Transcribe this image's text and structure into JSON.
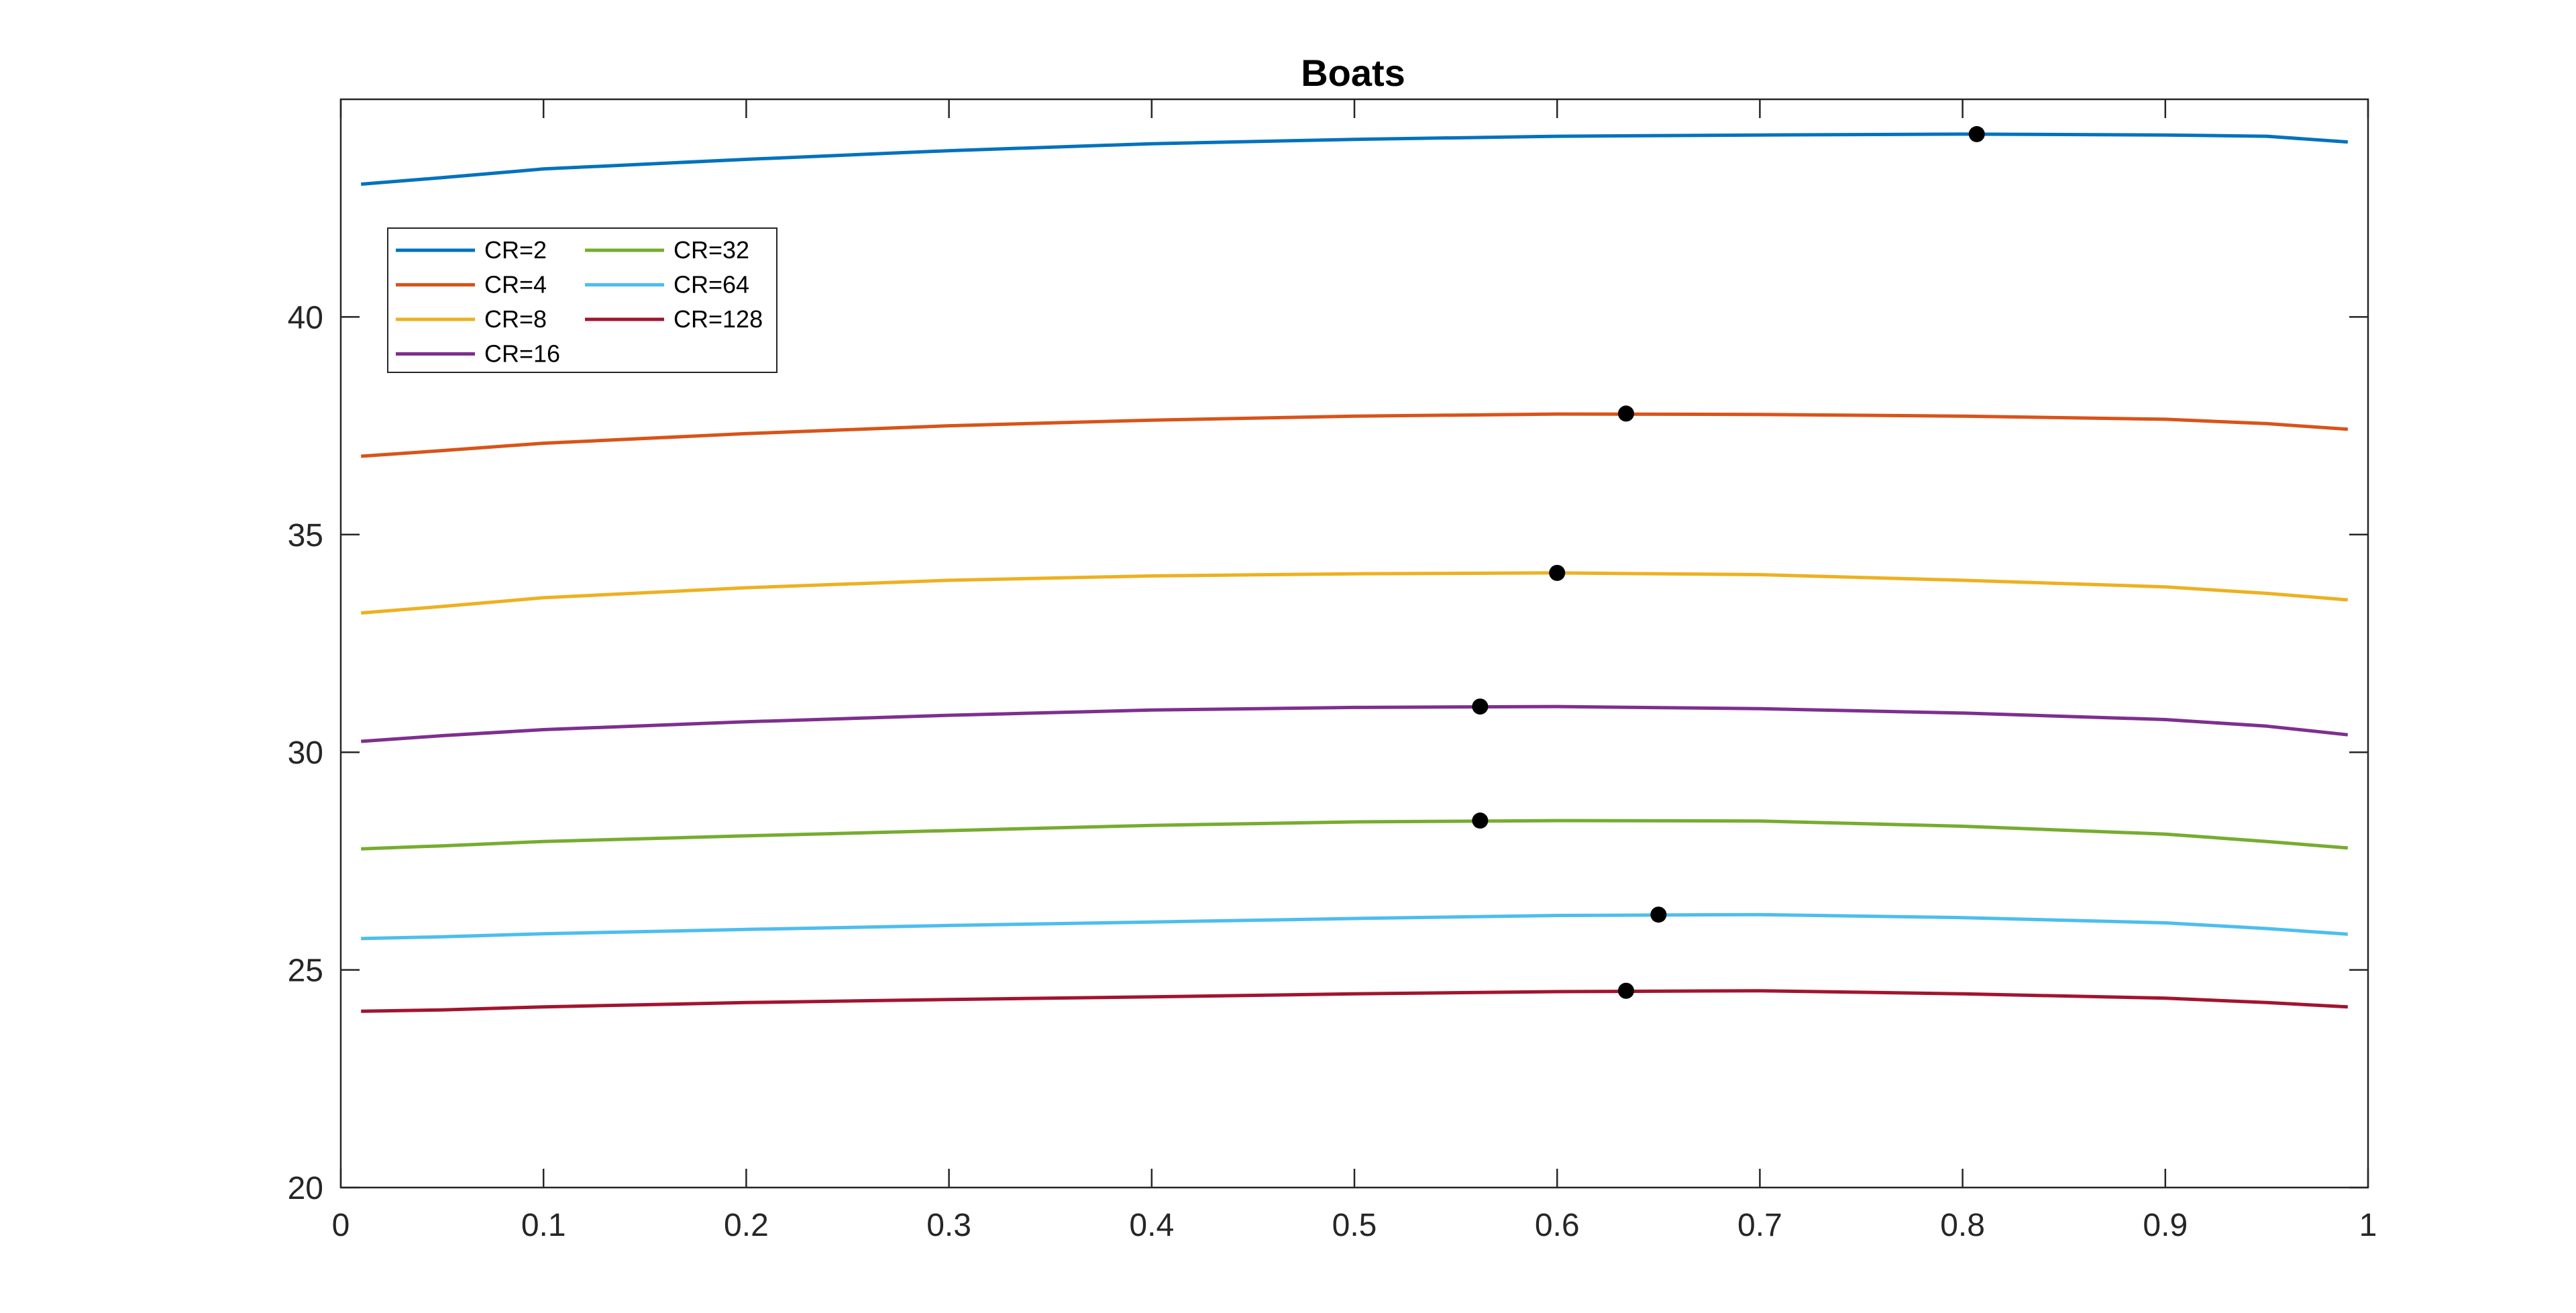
{
  "chart_data": {
    "type": "line",
    "title": "Boats",
    "xlabel": "",
    "ylabel": "",
    "xlim": [
      0,
      1
    ],
    "ylim": [
      20,
      45
    ],
    "xticks": [
      "0",
      "0.1",
      "0.2",
      "0.3",
      "0.4",
      "0.5",
      "0.6",
      "0.7",
      "0.8",
      "0.9",
      "1"
    ],
    "yticks": [
      "20",
      "25",
      "30",
      "35",
      "40"
    ],
    "grid": false,
    "legend_position": "top-left",
    "legend_columns": 2,
    "x": [
      0.01,
      0.05,
      0.1,
      0.2,
      0.3,
      0.4,
      0.5,
      0.6,
      0.7,
      0.8,
      0.9,
      0.95,
      0.99
    ],
    "series": [
      {
        "name": "CR=2",
        "color": "#0072BD",
        "values": [
          43.05,
          43.2,
          43.4,
          43.62,
          43.82,
          43.98,
          44.08,
          44.15,
          44.18,
          44.2,
          44.18,
          44.15,
          44.02
        ],
        "peak": {
          "x": 0.807,
          "y": 44.2
        }
      },
      {
        "name": "CR=4",
        "color": "#D95319",
        "values": [
          36.8,
          36.93,
          37.1,
          37.32,
          37.5,
          37.63,
          37.72,
          37.77,
          37.76,
          37.72,
          37.65,
          37.55,
          37.42
        ],
        "peak": {
          "x": 0.634,
          "y": 37.78
        }
      },
      {
        "name": "CR=8",
        "color": "#EDB120",
        "values": [
          33.2,
          33.35,
          33.55,
          33.78,
          33.95,
          34.05,
          34.1,
          34.12,
          34.08,
          33.95,
          33.8,
          33.65,
          33.5
        ],
        "peak": {
          "x": 0.6,
          "y": 34.12
        }
      },
      {
        "name": "CR=16",
        "color": "#7E2F8E",
        "values": [
          30.25,
          30.38,
          30.52,
          30.7,
          30.85,
          30.97,
          31.03,
          31.05,
          31.0,
          30.9,
          30.75,
          30.6,
          30.4
        ],
        "peak": {
          "x": 0.562,
          "y": 31.05
        }
      },
      {
        "name": "CR=32",
        "color": "#77AC30",
        "values": [
          27.78,
          27.85,
          27.95,
          28.08,
          28.2,
          28.32,
          28.4,
          28.43,
          28.42,
          28.3,
          28.12,
          27.95,
          27.8
        ],
        "peak": {
          "x": 0.562,
          "y": 28.43
        }
      },
      {
        "name": "CR=64",
        "color": "#4DBEEE",
        "values": [
          25.72,
          25.76,
          25.83,
          25.93,
          26.02,
          26.1,
          26.18,
          26.25,
          26.27,
          26.2,
          26.08,
          25.95,
          25.82
        ],
        "peak": {
          "x": 0.65,
          "y": 26.27
        }
      },
      {
        "name": "CR=128",
        "color": "#A2142F",
        "values": [
          24.05,
          24.08,
          24.15,
          24.25,
          24.32,
          24.38,
          24.45,
          24.5,
          24.52,
          24.45,
          24.35,
          24.25,
          24.15
        ],
        "peak": {
          "x": 0.634,
          "y": 24.52
        }
      }
    ]
  }
}
